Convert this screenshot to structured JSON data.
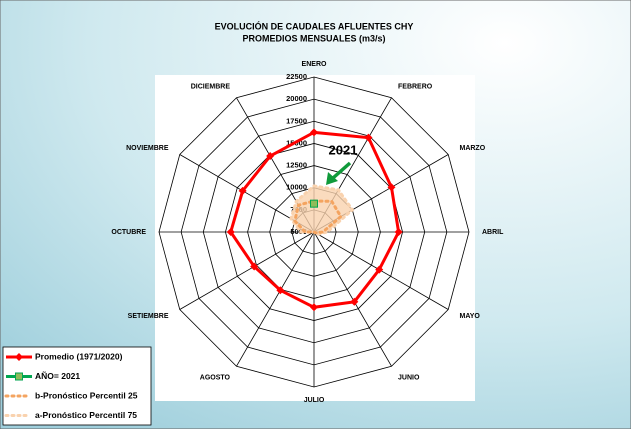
{
  "chart_data": {
    "type": "radar",
    "title": "EVOLUCIÓN DE CAUDALES AFLUENTES CHY",
    "subtitle": "PROMEDIOS MENSUALES (m3/s)",
    "categories": [
      "ENERO",
      "FEBRERO",
      "MARZO",
      "ABRIL",
      "MAYO",
      "JUNIO",
      "JULIO",
      "AGOSTO",
      "SETIEMBRE",
      "OCTUBRE",
      "NOVIEMBRE",
      "DICIEMBRE"
    ],
    "rlim": [
      5000,
      22500
    ],
    "rticks": [
      5000,
      7500,
      10000,
      12500,
      15000,
      17500,
      20000,
      22500
    ],
    "annotation": "2021",
    "series": [
      {
        "name": "Promedio (1971/2020)",
        "color": "#ff0000",
        "style": "line",
        "marker": "diamond",
        "values": [
          16250,
          17300,
          15100,
          14550,
          13500,
          14100,
          13500,
          12600,
          12800,
          14400,
          14300,
          14900
        ]
      },
      {
        "name": "AÑO= 2021",
        "color": "#00a650",
        "style": "line",
        "marker": "square",
        "values": [
          8200,
          null,
          null,
          null,
          null,
          null,
          null,
          null,
          null,
          null,
          null,
          null
        ]
      },
      {
        "name": "b-Pronóstico Percentil 25",
        "color": "#f4a460",
        "style": "dots",
        "marker": null,
        "values": [
          8500,
          9000,
          8500,
          6000,
          5200,
          5000,
          5000,
          5000,
          5000,
          6000,
          7500,
          8500
        ]
      },
      {
        "name": "a-Pronóstico Percentil 75",
        "color": "#f9d2ae",
        "style": "dots-filled",
        "marker": null,
        "values": [
          10200,
          10500,
          10000,
          6500,
          5500,
          5000,
          5000,
          5000,
          5000,
          6500,
          8000,
          9000
        ]
      }
    ]
  }
}
